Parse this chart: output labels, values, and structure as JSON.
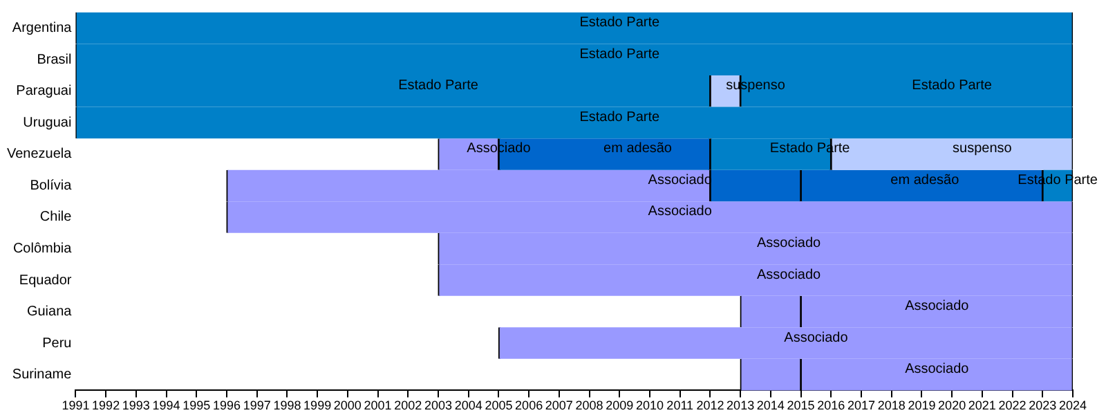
{
  "chart_data": {
    "type": "bar",
    "orientation": "horizontal",
    "grid": false,
    "legend": false,
    "categories": [
      "Argentina",
      "Brasil",
      "Paraguai",
      "Uruguai",
      "Venezuela",
      "Bolívia",
      "Chile",
      "Colômbia",
      "Equador",
      "Guiana",
      "Peru",
      "Suriname"
    ],
    "series": [
      {
        "color": "#0080c8",
        "values": [
          33,
          33,
          21,
          33,
          4,
          1,
          null,
          null,
          null,
          null,
          null,
          null
        ],
        "base": [
          1991,
          1991,
          1991,
          1991,
          2012,
          2023,
          null,
          null,
          null,
          null,
          null,
          null
        ]
      },
      {
        "color": "#0080c8",
        "values": [
          null,
          null,
          11,
          null,
          null,
          null,
          null,
          null,
          null,
          null,
          null,
          null
        ],
        "base": [
          null,
          null,
          2013,
          null,
          null,
          null,
          null,
          null,
          null,
          null,
          null,
          null
        ]
      },
      {
        "color": "#b8ccff",
        "values": [
          null,
          null,
          1,
          null,
          8,
          null,
          null,
          null,
          null,
          null,
          null,
          null
        ],
        "base": [
          null,
          null,
          2012,
          null,
          2016,
          null,
          null,
          null,
          null,
          null,
          null,
          null
        ]
      },
      {
        "color": "#0066cc",
        "values": [
          null,
          null,
          null,
          null,
          7,
          3,
          null,
          null,
          null,
          null,
          null,
          null
        ],
        "base": [
          null,
          null,
          null,
          null,
          2005,
          2012,
          null,
          null,
          null,
          null,
          null,
          null
        ]
      },
      {
        "color": "#0066cc",
        "values": [
          null,
          null,
          null,
          null,
          null,
          8,
          null,
          null,
          null,
          null,
          null,
          null
        ],
        "base": [
          null,
          null,
          null,
          null,
          null,
          2015,
          null,
          null,
          null,
          null,
          null,
          null
        ]
      },
      {
        "color": "#9999ff",
        "values": [
          null,
          null,
          null,
          null,
          2,
          16,
          28,
          21,
          21,
          2,
          19,
          2
        ],
        "base": [
          null,
          null,
          null,
          null,
          2003,
          1996,
          1996,
          2003,
          2003,
          2013,
          2005,
          2013
        ]
      },
      {
        "color": "#9999ff",
        "values": [
          null,
          null,
          null,
          null,
          null,
          null,
          null,
          null,
          null,
          9,
          null,
          9
        ],
        "base": [
          null,
          null,
          null,
          null,
          null,
          null,
          null,
          null,
          null,
          2015,
          null,
          2015
        ]
      }
    ],
    "xlim": [
      1991,
      2024
    ],
    "xticks": [
      1991,
      1992,
      1993,
      1994,
      1995,
      1996,
      1997,
      1998,
      1999,
      2000,
      2001,
      2002,
      2003,
      2004,
      2005,
      2006,
      2007,
      2008,
      2009,
      2010,
      2011,
      2012,
      2013,
      2014,
      2015,
      2016,
      2017,
      2018,
      2019,
      2020,
      2021,
      2022,
      2023,
      2024
    ],
    "annotations": [
      {
        "text": "Estado Parte",
        "x": 2009,
        "y": "Argentina"
      },
      {
        "text": "Estado Parte",
        "x": 2009,
        "y": "Brasil"
      },
      {
        "text": "Estado Parte",
        "x": 2003,
        "y": "Paraguai"
      },
      {
        "text": "suspenso",
        "x": 2013.5,
        "y": "Paraguai"
      },
      {
        "text": "Estado Parte",
        "x": 2020,
        "y": "Paraguai"
      },
      {
        "text": "Estado Parte",
        "x": 2009,
        "y": "Uruguai"
      },
      {
        "text": "Associado",
        "x": 2005,
        "y": "Venezuela"
      },
      {
        "text": "em adesão",
        "x": 2009.6,
        "y": "Venezuela"
      },
      {
        "text": "Estado Parte",
        "x": 2015.3,
        "y": "Venezuela"
      },
      {
        "text": "suspenso",
        "x": 2021,
        "y": "Venezuela"
      },
      {
        "text": "Associado",
        "x": 2011,
        "y": "Bolívia"
      },
      {
        "text": "em adesão",
        "x": 2019.1,
        "y": "Bolívia"
      },
      {
        "text": "Estado Parte",
        "x": 2023.5,
        "y": "Bolívia"
      },
      {
        "text": "Associado",
        "x": 2011,
        "y": "Chile"
      },
      {
        "text": "Associado",
        "x": 2014.6,
        "y": "Colômbia"
      },
      {
        "text": "Associado",
        "x": 2014.6,
        "y": "Equador"
      },
      {
        "text": "Associado",
        "x": 2019.5,
        "y": "Guiana"
      },
      {
        "text": "Associado",
        "x": 2015.5,
        "y": "Peru"
      },
      {
        "text": "Associado",
        "x": 2019.5,
        "y": "Suriname"
      }
    ]
  }
}
